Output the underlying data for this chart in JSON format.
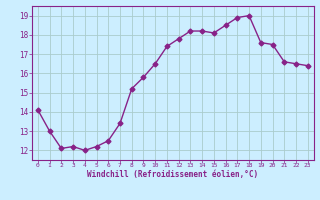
{
  "x": [
    0,
    1,
    2,
    3,
    4,
    5,
    6,
    7,
    8,
    9,
    10,
    11,
    12,
    13,
    14,
    15,
    16,
    17,
    18,
    19,
    20,
    21,
    22,
    23
  ],
  "y": [
    14.1,
    13.0,
    12.1,
    12.2,
    12.0,
    12.2,
    12.5,
    13.4,
    15.2,
    15.8,
    16.5,
    17.4,
    17.8,
    18.2,
    18.2,
    18.1,
    18.5,
    18.9,
    19.0,
    17.6,
    17.5,
    16.6,
    16.5,
    16.4
  ],
  "line_color": "#882288",
  "marker": "D",
  "marker_size": 2.5,
  "bg_color": "#cceeff",
  "grid_color": "#aacccc",
  "xlabel": "Windchill (Refroidissement éolien,°C)",
  "xlabel_color": "#882288",
  "tick_color": "#882288",
  "ylim": [
    11.5,
    19.5
  ],
  "xlim": [
    -0.5,
    23.5
  ],
  "yticks": [
    12,
    13,
    14,
    15,
    16,
    17,
    18,
    19
  ],
  "xticks": [
    0,
    1,
    2,
    3,
    4,
    5,
    6,
    7,
    8,
    9,
    10,
    11,
    12,
    13,
    14,
    15,
    16,
    17,
    18,
    19,
    20,
    21,
    22,
    23
  ],
  "line_width": 1.0
}
